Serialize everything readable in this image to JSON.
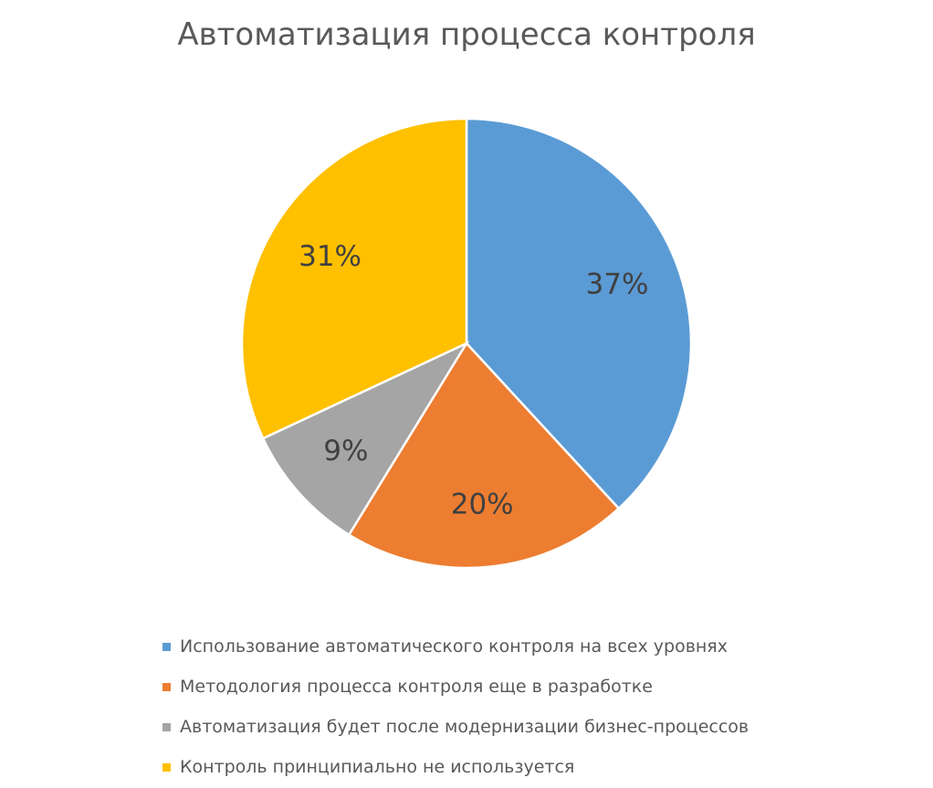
{
  "chart_data": {
    "type": "pie",
    "title": "Автоматизация процесса контроля",
    "categories": [
      "Использование автоматического контроля на всех уровнях",
      "Методология процесса контроля еще в разработке",
      "Автоматизация будет после модернизации бизнес-процессов",
      "Контроль принципиально не используется"
    ],
    "values": [
      37,
      20,
      9,
      31
    ],
    "labels": [
      "37%",
      "20%",
      "9%",
      "31%"
    ],
    "colors": [
      "#5B9BD5",
      "#ED7D31",
      "#A5A5A5",
      "#FFC000"
    ],
    "legend_position": "bottom"
  }
}
